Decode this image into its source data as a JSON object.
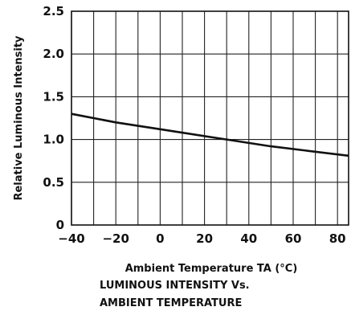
{
  "chart_data": {
    "type": "line",
    "xlabel": "Ambient Temperature TA (°C)",
    "ylabel": "Relative Luminous Intensity",
    "caption_lines": [
      "LUMINOUS INTENSITY Vs.",
      "AMBIENT TEMPERATURE"
    ],
    "xlim": [
      -40,
      85
    ],
    "ylim": [
      0,
      2.5
    ],
    "x_ticks": [
      -40,
      -20,
      0,
      20,
      40,
      60,
      80
    ],
    "x_tick_labels": [
      "−40",
      "−20",
      "0",
      "20",
      "40",
      "60",
      "80"
    ],
    "y_ticks": [
      0,
      0.5,
      1.0,
      1.5,
      2.0,
      2.5
    ],
    "y_tick_labels": [
      "0",
      "0.5",
      "1.0",
      "1.5",
      "2.0",
      "2.5"
    ],
    "grid": true,
    "series": [
      {
        "x": [
          -40,
          -20,
          0,
          25,
          50,
          85
        ],
        "y": [
          1.3,
          1.2,
          1.12,
          1.02,
          0.92,
          0.81
        ]
      }
    ]
  }
}
